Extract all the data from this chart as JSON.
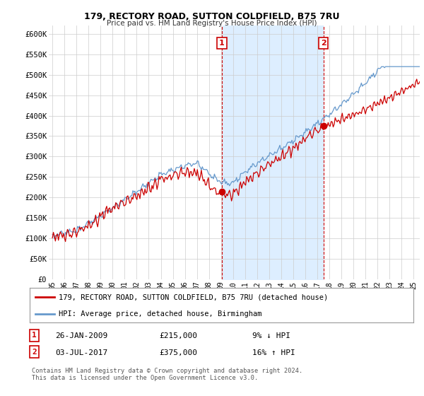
{
  "title1": "179, RECTORY ROAD, SUTTON COLDFIELD, B75 7RU",
  "title2": "Price paid vs. HM Land Registry's House Price Index (HPI)",
  "ylabel_ticks": [
    "£0",
    "£50K",
    "£100K",
    "£150K",
    "£200K",
    "£250K",
    "£300K",
    "£350K",
    "£400K",
    "£450K",
    "£500K",
    "£550K",
    "£600K"
  ],
  "ytick_values": [
    0,
    50000,
    100000,
    150000,
    200000,
    250000,
    300000,
    350000,
    400000,
    450000,
    500000,
    550000,
    600000
  ],
  "ylim": [
    0,
    620000
  ],
  "xlim_start": 1994.7,
  "xlim_end": 2025.5,
  "legend_line1": "179, RECTORY ROAD, SUTTON COLDFIELD, B75 7RU (detached house)",
  "legend_line2": "HPI: Average price, detached house, Birmingham",
  "marker1_x": 2009.07,
  "marker1_y": 215000,
  "marker1_label": "1",
  "marker1_date": "26-JAN-2009",
  "marker1_price": "£215,000",
  "marker1_hpi": "9% ↓ HPI",
  "marker2_x": 2017.5,
  "marker2_y": 375000,
  "marker2_label": "2",
  "marker2_date": "03-JUL-2017",
  "marker2_price": "£375,000",
  "marker2_hpi": "16% ↑ HPI",
  "footer": "Contains HM Land Registry data © Crown copyright and database right 2024.\nThis data is licensed under the Open Government Licence v3.0.",
  "line_color_red": "#cc0000",
  "line_color_blue": "#6699cc",
  "fill_color": "#ddeeff",
  "background_plot": "#ffffff",
  "background_fig": "#ffffff",
  "grid_color": "#cccccc"
}
